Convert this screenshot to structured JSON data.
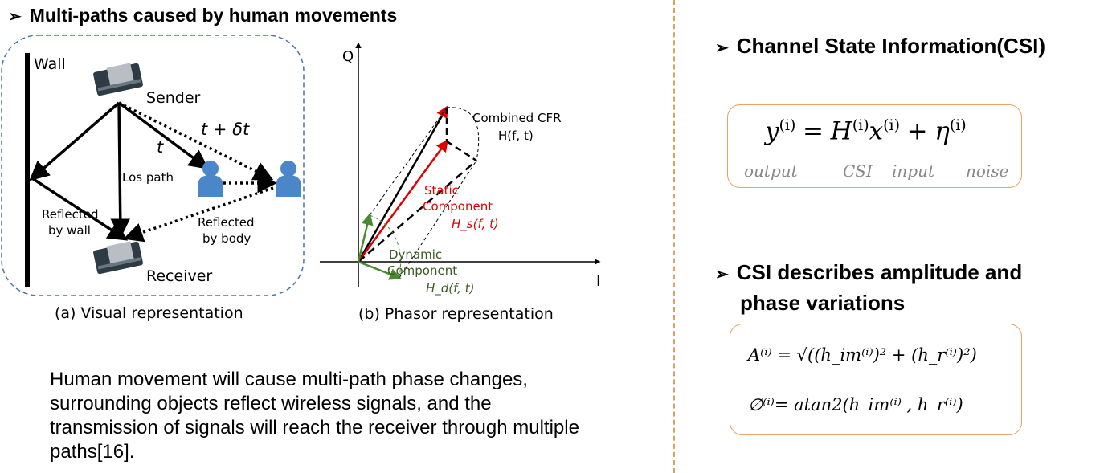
{
  "left": {
    "heading": "Multi-paths caused by human movements",
    "visual": {
      "wall_label": "Wall",
      "sender_label": "Sender",
      "receiver_label": "Receiver",
      "t_label": "t",
      "t_delta_label": "t + δt",
      "los_label": "Los path",
      "reflected_wall_line1": "Reflected",
      "reflected_wall_line2": "by wall",
      "reflected_body_line1": "Reflected",
      "reflected_body_line2": "by body",
      "caption": "(a) Visual representation"
    },
    "phasor": {
      "axis_q": "Q",
      "axis_i": "I",
      "combined_line1": "Combined CFR",
      "combined_line2": "H(f, t)",
      "static_line1": "Static",
      "static_line2": "Component",
      "static_formula": "H_s(f, t)",
      "dynamic_line1": "Dynamic",
      "dynamic_line2": "Component",
      "dynamic_formula": "H_d(f, t)",
      "caption": "(b) Phasor representation"
    },
    "paragraph": "Human movement will cause multi-path phase changes, surrounding objects reflect wireless signals, and the transmission of signals will reach the receiver through multiple paths[16]."
  },
  "right": {
    "csi_heading": "Channel State Information(CSI)",
    "csi_formula": {
      "y": "y",
      "H": "H",
      "x": "x",
      "eta": "η",
      "sup": "(i)",
      "eq": "=",
      "plus": "+",
      "labels": {
        "output": "output",
        "csi": "CSI",
        "input": "input",
        "noise": "noise"
      }
    },
    "amp_heading_line1": "CSI describes amplitude and",
    "amp_heading_line2": "phase variations",
    "amp_formula": "A⁽ⁱ⁾ = √((h_im⁽ⁱ⁾)² + (h_r⁽ⁱ⁾)²)",
    "phase_formula": "∅⁽ⁱ⁾= atan2(h_im⁽ⁱ⁾ , h_r⁽ⁱ⁾)"
  },
  "colors": {
    "box_border": "#f0a060",
    "divider": "#e0a060",
    "diagram_border": "#4a77a8",
    "person": "#4a86c8",
    "static": "#e00000",
    "dynamic": "#4a8a30",
    "dynamic_text": "#3a5a20",
    "formula_label": "#888888"
  }
}
